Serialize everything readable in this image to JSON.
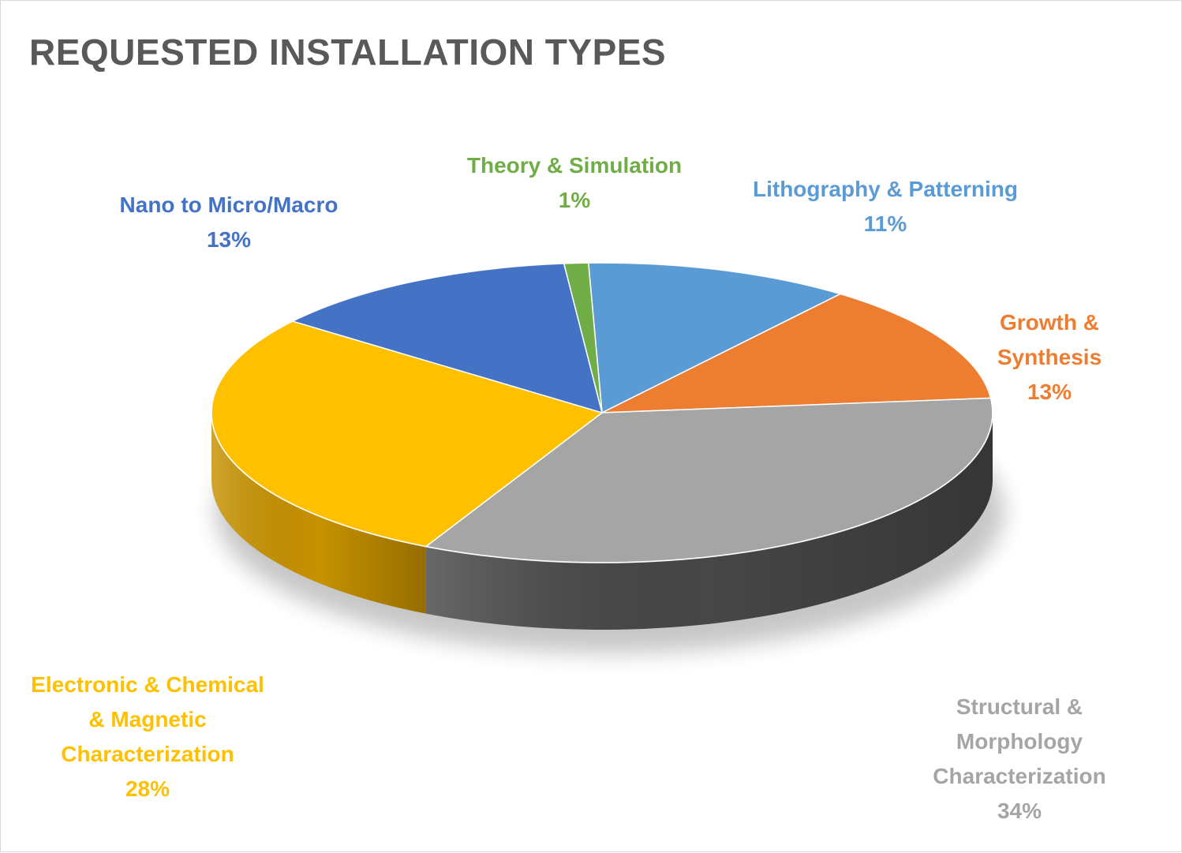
{
  "chart_data": {
    "type": "pie",
    "title": "REQUESTED INSTALLATION TYPES",
    "slices": [
      {
        "label_lines": [
          "Lithography & Patterning"
        ],
        "percent_label": "11%",
        "value": 11,
        "color": "#5b9bd5",
        "side_color": "#2e6da4"
      },
      {
        "label_lines": [
          "Growth &",
          "Synthesis"
        ],
        "percent_label": "13%",
        "value": 13,
        "color": "#ed7d31",
        "side_color": "#b4591f"
      },
      {
        "label_lines": [
          "Structural &",
          "Morphology",
          "Characterization"
        ],
        "percent_label": "34%",
        "value": 34,
        "color": "#a5a5a5",
        "side_color": "#474747"
      },
      {
        "label_lines": [
          "Electronic & Chemical",
          "& Magnetic",
          "Characterization"
        ],
        "percent_label": "28%",
        "value": 28,
        "color": "#ffc000",
        "side_color": "#c79200"
      },
      {
        "label_lines": [
          "Nano to Micro/Macro"
        ],
        "percent_label": "13%",
        "value": 13,
        "color": "#4472c4",
        "side_color": "#2f528f"
      },
      {
        "label_lines": [
          "Theory & Simulation"
        ],
        "percent_label": "1%",
        "value": 1,
        "color": "#70ad47",
        "side_color": "#4e7a31"
      }
    ],
    "legend": "none",
    "label_colors": [
      "#5b9bd5",
      "#ed7d31",
      "#a5a5a5",
      "#ffc000",
      "#4472c4",
      "#70ad47"
    ]
  }
}
